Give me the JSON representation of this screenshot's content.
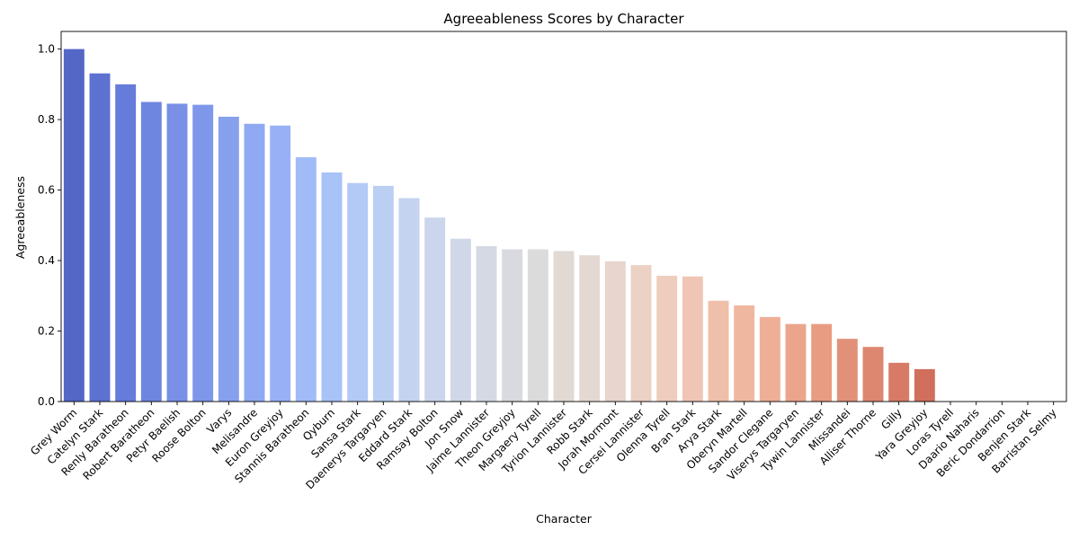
{
  "chart_data": {
    "type": "bar",
    "title": "Agreeableness Scores by Character",
    "xlabel": "Character",
    "ylabel": "Agreeableness",
    "ylim": [
      0,
      1.05
    ],
    "yticks": [
      0.0,
      0.2,
      0.4,
      0.6,
      0.8,
      1.0
    ],
    "ytick_labels": [
      "0.0",
      "0.2",
      "0.4",
      "0.6",
      "0.8",
      "1.0"
    ],
    "grid": false,
    "colormap": "coolwarm",
    "categories": [
      "Grey Worm",
      "Catelyn Stark",
      "Renly Baratheon",
      "Robert Baratheon",
      "Petyr Baelish",
      "Roose Bolton",
      "Varys",
      "Melisandre",
      "Euron Greyjoy",
      "Stannis Baratheon",
      "Qyburn",
      "Sansa Stark",
      "Daenerys Targaryen",
      "Eddard Stark",
      "Ramsay Bolton",
      "Jon Snow",
      "Jaime Lannister",
      "Theon Greyjoy",
      "Margaery Tyrell",
      "Tyrion Lannister",
      "Robb Stark",
      "Jorah Mormont",
      "Cersei Lannister",
      "Olenna Tyrell",
      "Bran Stark",
      "Arya Stark",
      "Oberyn Martell",
      "Sandor Clegane",
      "Viserys Targaryen",
      "Tywin Lannister",
      "Missandei",
      "Alliser Thorne",
      "Gilly",
      "Yara Greyjoy",
      "Loras Tyrell",
      "Daario Naharis",
      "Beric Dondarrion",
      "Benjen Stark",
      "Barristan Selmy"
    ],
    "values": [
      1.0,
      0.931,
      0.9,
      0.85,
      0.845,
      0.842,
      0.808,
      0.788,
      0.783,
      0.693,
      0.65,
      0.62,
      0.612,
      0.577,
      0.522,
      0.462,
      0.441,
      0.432,
      0.432,
      0.427,
      0.415,
      0.398,
      0.387,
      0.357,
      0.355,
      0.286,
      0.273,
      0.24,
      0.22,
      0.22,
      0.178,
      0.155,
      0.11,
      0.092,
      0.0,
      0.0,
      0.0,
      0.0,
      0.0
    ],
    "colors": [
      "#5467c7",
      "#5d71d0",
      "#667cda",
      "#6f86e0",
      "#7990e6",
      "#7f97ea",
      "#87a0ee",
      "#8fa9f2",
      "#98b1f6",
      "#a1bbf8",
      "#a9c2f8",
      "#b3c9f6",
      "#bbcff3",
      "#c3d3f0",
      "#cbd6ec",
      "#d0d8e8",
      "#d4d9e3",
      "#d8dae0",
      "#dcdbdc",
      "#e0d9d4",
      "#e4d9d2",
      "#e8d5cd",
      "#ecd1c5",
      "#eecdbe",
      "#efc6b5",
      "#f0bfa9",
      "#f0b7a0",
      "#efaf97",
      "#eba58c",
      "#e89d83",
      "#e29179",
      "#dd8670",
      "#d77b67",
      "#d0705c",
      "#c7604f",
      "#c05448",
      "#b84840",
      "#b03c39",
      "#a73031"
    ]
  }
}
